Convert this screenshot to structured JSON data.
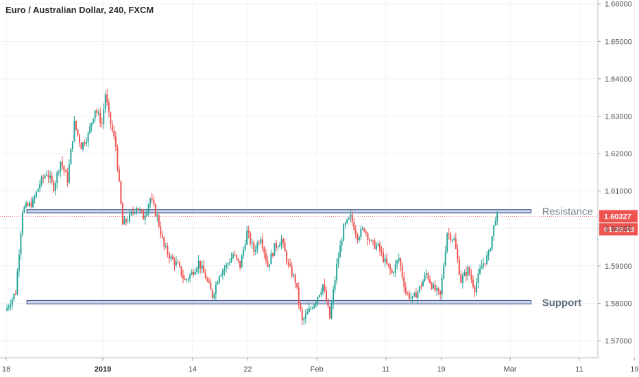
{
  "chart_data": {
    "type": "candlestick",
    "title": "Euro / Australian Dollar, 240, FXCM",
    "ylim": [
      1.568,
      1.6605
    ],
    "y_ticks": [
      "1.66000",
      "1.65000",
      "1.64000",
      "1.63000",
      "1.62000",
      "1.61000",
      "1.60000",
      "1.59000",
      "1.58000",
      "1.57000"
    ],
    "x_ticks": [
      {
        "label": "18",
        "day": 0,
        "bold": false
      },
      {
        "label": "2019",
        "day": 14,
        "bold": true
      },
      {
        "label": "14",
        "day": 27,
        "bold": false
      },
      {
        "label": "22",
        "day": 35,
        "bold": false
      },
      {
        "label": "Feb",
        "day": 45,
        "bold": false
      },
      {
        "label": "11",
        "day": 55,
        "bold": false
      },
      {
        "label": "19",
        "day": 63,
        "bold": false
      },
      {
        "label": "Mar",
        "day": 73,
        "bold": false
      },
      {
        "label": "11",
        "day": 83,
        "bold": false
      },
      {
        "label": "19",
        "day": 91,
        "bold": false
      }
    ],
    "levels": [
      {
        "name": "Resistance",
        "value": 1.6045,
        "bold": false,
        "from_day": 2,
        "to_day": 80
      },
      {
        "name": "Support",
        "value": 1.5802,
        "bold": true,
        "from_day": 2,
        "to_day": 80
      }
    ],
    "current_price": {
      "label": "1.60327",
      "value": 1.60327,
      "timer": "01:29:18"
    },
    "up_color": "#26a69a",
    "down_color": "#ef5350",
    "anchors": [
      [
        0,
        1.578
      ],
      [
        1.5,
        1.583
      ],
      [
        2.5,
        1.605
      ],
      [
        4,
        1.607
      ],
      [
        5,
        1.612
      ],
      [
        6,
        1.615
      ],
      [
        7,
        1.611
      ],
      [
        8,
        1.618
      ],
      [
        9,
        1.613
      ],
      [
        10,
        1.628
      ],
      [
        11,
        1.622
      ],
      [
        12,
        1.625
      ],
      [
        13,
        1.632
      ],
      [
        14,
        1.628
      ],
      [
        14.5,
        1.636
      ],
      [
        15,
        1.63
      ],
      [
        16,
        1.622
      ],
      [
        17,
        1.601
      ],
      [
        18,
        1.603
      ],
      [
        19,
        1.606
      ],
      [
        20,
        1.603
      ],
      [
        21,
        1.608
      ],
      [
        22,
        1.603
      ],
      [
        23,
        1.595
      ],
      [
        24,
        1.592
      ],
      [
        25,
        1.59
      ],
      [
        26,
        1.586
      ],
      [
        27,
        1.588
      ],
      [
        28,
        1.591
      ],
      [
        29,
        1.587
      ],
      [
        30,
        1.582
      ],
      [
        31,
        1.588
      ],
      [
        32,
        1.59
      ],
      [
        33,
        1.593
      ],
      [
        34,
        1.59
      ],
      [
        35,
        1.599
      ],
      [
        36,
        1.594
      ],
      [
        37,
        1.598
      ],
      [
        38,
        1.59
      ],
      [
        39,
        1.595
      ],
      [
        40,
        1.597
      ],
      [
        41,
        1.59
      ],
      [
        42,
        1.586
      ],
      [
        43,
        1.575
      ],
      [
        44,
        1.578
      ],
      [
        45,
        1.581
      ],
      [
        46,
        1.585
      ],
      [
        47,
        1.576
      ],
      [
        48,
        1.59
      ],
      [
        49,
        1.6
      ],
      [
        50,
        1.603
      ],
      [
        51,
        1.598
      ],
      [
        52,
        1.6
      ],
      [
        53,
        1.596
      ],
      [
        54,
        1.595
      ],
      [
        55,
        1.591
      ],
      [
        56,
        1.588
      ],
      [
        57,
        1.592
      ],
      [
        58,
        1.583
      ],
      [
        59,
        1.581
      ],
      [
        60,
        1.584
      ],
      [
        61,
        1.588
      ],
      [
        62,
        1.584
      ],
      [
        63,
        1.582
      ],
      [
        64,
        1.599
      ],
      [
        65,
        1.597
      ],
      [
        66,
        1.586
      ],
      [
        67,
        1.589
      ],
      [
        68,
        1.584
      ],
      [
        69,
        1.59
      ],
      [
        70,
        1.593
      ],
      [
        71,
        1.603
      ]
    ]
  }
}
